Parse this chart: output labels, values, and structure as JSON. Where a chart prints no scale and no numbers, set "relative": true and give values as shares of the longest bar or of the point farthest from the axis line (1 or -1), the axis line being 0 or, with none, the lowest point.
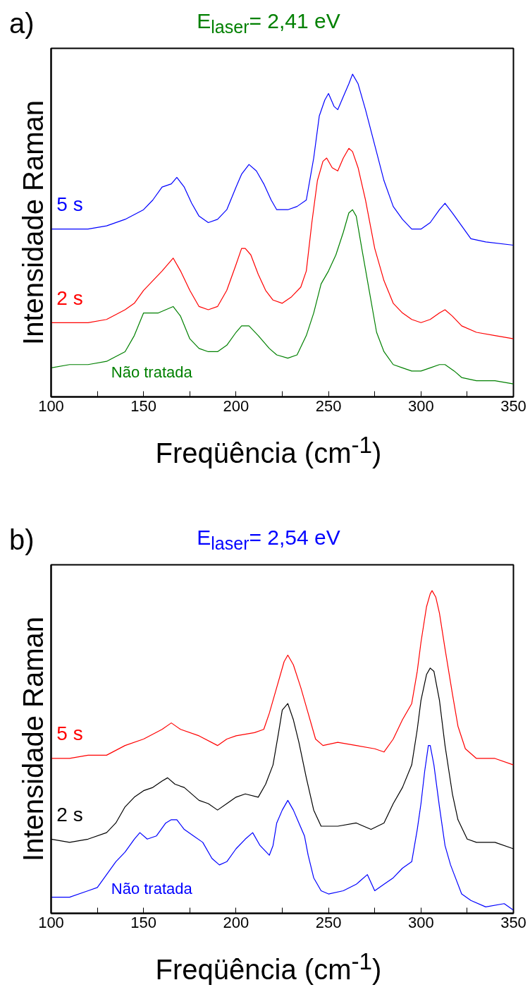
{
  "chart_data": [
    {
      "type": "line",
      "title": "E$_{laser}$= 2,41 eV",
      "xlabel": "Freqüência (cm$^{-1}$)",
      "ylabel": "Intensidade Raman",
      "relative": true,
      "xlim": [
        100,
        350
      ],
      "xticks": [
        100,
        {
          "value": 125,
          "label": null
        },
        150,
        {
          "value": 175,
          "label": null
        },
        200,
        {
          "value": 225,
          "label": null
        },
        250,
        {
          "value": 275,
          "label": null
        },
        300,
        {
          "value": 325,
          "label": null
        },
        350
      ],
      "tick_labels": "x",
      "grid": false,
      "annotations": [
        "a)"
      ],
      "series": [
        {
          "name": "5 s",
          "color": "#0000ff",
          "x": [
            100,
            120,
            130,
            140,
            150,
            155,
            160,
            165,
            168,
            172,
            176,
            180,
            185,
            190,
            195,
            200,
            203,
            207,
            211,
            215,
            219,
            222,
            228,
            233,
            238,
            242,
            245,
            248,
            250,
            253,
            255,
            258,
            261,
            263,
            266,
            270,
            275,
            280,
            285,
            290,
            295,
            300,
            305,
            310,
            313,
            317,
            322,
            327,
            335,
            350
          ],
          "values": [
            0.52,
            0.52,
            0.53,
            0.55,
            0.58,
            0.61,
            0.65,
            0.66,
            0.68,
            0.65,
            0.6,
            0.56,
            0.54,
            0.55,
            0.58,
            0.65,
            0.69,
            0.72,
            0.7,
            0.66,
            0.61,
            0.58,
            0.58,
            0.59,
            0.61,
            0.74,
            0.87,
            0.92,
            0.94,
            0.9,
            0.89,
            0.93,
            0.97,
            1.0,
            0.97,
            0.89,
            0.78,
            0.67,
            0.59,
            0.55,
            0.52,
            0.52,
            0.54,
            0.58,
            0.6,
            0.57,
            0.53,
            0.49,
            0.48,
            0.47
          ]
        },
        {
          "name": "2 s",
          "color": "#ff0000",
          "x": [
            100,
            120,
            130,
            140,
            145,
            150,
            155,
            160,
            166,
            170,
            175,
            180,
            185,
            190,
            195,
            200,
            203,
            205,
            208,
            212,
            216,
            220,
            225,
            230,
            235,
            238,
            241,
            244,
            247,
            249,
            252,
            255,
            258,
            261,
            263,
            266,
            270,
            275,
            280,
            285,
            290,
            295,
            300,
            305,
            310,
            313,
            317,
            322,
            330,
            340,
            350
          ],
          "values": [
            0.23,
            0.23,
            0.24,
            0.27,
            0.29,
            0.33,
            0.36,
            0.39,
            0.43,
            0.39,
            0.33,
            0.28,
            0.27,
            0.28,
            0.33,
            0.41,
            0.46,
            0.46,
            0.44,
            0.38,
            0.33,
            0.3,
            0.29,
            0.31,
            0.34,
            0.39,
            0.54,
            0.67,
            0.73,
            0.74,
            0.71,
            0.7,
            0.74,
            0.77,
            0.76,
            0.71,
            0.61,
            0.46,
            0.36,
            0.29,
            0.26,
            0.24,
            0.23,
            0.24,
            0.26,
            0.27,
            0.25,
            0.22,
            0.2,
            0.19,
            0.18
          ]
        },
        {
          "name": "Não tratada",
          "color": "#008000",
          "x": [
            100,
            110,
            120,
            130,
            140,
            145,
            150,
            154,
            158,
            162,
            166,
            170,
            175,
            180,
            185,
            190,
            195,
            200,
            203,
            207,
            212,
            218,
            222,
            228,
            233,
            238,
            242,
            246,
            250,
            254,
            258,
            261,
            263,
            265,
            268,
            272,
            276,
            280,
            285,
            290,
            295,
            300,
            305,
            310,
            313,
            318,
            322,
            330,
            340,
            350
          ],
          "values": [
            0.09,
            0.1,
            0.1,
            0.11,
            0.14,
            0.19,
            0.26,
            0.26,
            0.26,
            0.27,
            0.28,
            0.25,
            0.18,
            0.15,
            0.14,
            0.14,
            0.16,
            0.2,
            0.22,
            0.22,
            0.19,
            0.15,
            0.13,
            0.12,
            0.13,
            0.19,
            0.26,
            0.35,
            0.39,
            0.44,
            0.51,
            0.57,
            0.58,
            0.56,
            0.46,
            0.33,
            0.2,
            0.14,
            0.1,
            0.09,
            0.08,
            0.08,
            0.09,
            0.1,
            0.1,
            0.08,
            0.06,
            0.05,
            0.05,
            0.04
          ]
        }
      ]
    },
    {
      "type": "line",
      "title": "E$_{laser}$= 2,54 eV",
      "xlabel": "Freqüência (cm$^{-1}$)",
      "ylabel": "Intensidade Raman",
      "relative": true,
      "xlim": [
        100,
        350
      ],
      "xticks": [
        100,
        {
          "value": 125,
          "label": null
        },
        150,
        {
          "value": 175,
          "label": null
        },
        200,
        {
          "value": 225,
          "label": null
        },
        250,
        {
          "value": 275,
          "label": null
        },
        300,
        {
          "value": 325,
          "label": null
        },
        350
      ],
      "tick_labels": "x",
      "grid": false,
      "annotations": [
        "b)"
      ],
      "series": [
        {
          "name": "5 s",
          "color": "#ff0000",
          "x": [
            100,
            110,
            120,
            130,
            140,
            150,
            160,
            165,
            170,
            180,
            190,
            195,
            200,
            210,
            215,
            218,
            222,
            226,
            228,
            231,
            235,
            239,
            243,
            247,
            255,
            265,
            275,
            280,
            285,
            290,
            295,
            298,
            300,
            303,
            305,
            306,
            308,
            310,
            313,
            317,
            320,
            324,
            330,
            340,
            350
          ],
          "values": [
            0.48,
            0.48,
            0.49,
            0.49,
            0.52,
            0.54,
            0.57,
            0.59,
            0.57,
            0.55,
            0.52,
            0.54,
            0.55,
            0.56,
            0.57,
            0.62,
            0.7,
            0.78,
            0.8,
            0.77,
            0.7,
            0.62,
            0.54,
            0.52,
            0.53,
            0.52,
            0.51,
            0.5,
            0.54,
            0.6,
            0.65,
            0.75,
            0.84,
            0.95,
            0.99,
            1.0,
            0.98,
            0.93,
            0.82,
            0.68,
            0.58,
            0.51,
            0.48,
            0.48,
            0.46
          ]
        },
        {
          "name": "2 s",
          "color": "#000000",
          "x": [
            100,
            110,
            120,
            130,
            135,
            140,
            145,
            150,
            155,
            160,
            163,
            167,
            172,
            180,
            185,
            190,
            195,
            200,
            205,
            212,
            216,
            220,
            223,
            225,
            228,
            231,
            234,
            238,
            242,
            246,
            255,
            265,
            273,
            280,
            285,
            290,
            295,
            298,
            300,
            303,
            305,
            307,
            310,
            313,
            317,
            320,
            325,
            330,
            340,
            350
          ],
          "values": [
            0.23,
            0.22,
            0.23,
            0.25,
            0.28,
            0.33,
            0.36,
            0.38,
            0.39,
            0.41,
            0.42,
            0.4,
            0.39,
            0.35,
            0.34,
            0.32,
            0.34,
            0.36,
            0.37,
            0.36,
            0.4,
            0.46,
            0.56,
            0.63,
            0.65,
            0.6,
            0.53,
            0.42,
            0.32,
            0.27,
            0.27,
            0.28,
            0.26,
            0.28,
            0.34,
            0.39,
            0.46,
            0.57,
            0.66,
            0.74,
            0.76,
            0.75,
            0.66,
            0.52,
            0.37,
            0.29,
            0.23,
            0.22,
            0.22,
            0.2
          ]
        },
        {
          "name": "Não tratada",
          "color": "#0000ff",
          "x": [
            100,
            110,
            120,
            125,
            130,
            135,
            140,
            145,
            148,
            152,
            157,
            162,
            165,
            168,
            172,
            177,
            182,
            187,
            191,
            195,
            200,
            205,
            209,
            213,
            218,
            220,
            222,
            225,
            228,
            231,
            234,
            237,
            239,
            242,
            246,
            250,
            258,
            265,
            271,
            275,
            280,
            285,
            290,
            295,
            298,
            300,
            302,
            304,
            305,
            307,
            310,
            313,
            316,
            318,
            322,
            327,
            335,
            345,
            350
          ],
          "values": [
            0.05,
            0.05,
            0.07,
            0.08,
            0.12,
            0.16,
            0.19,
            0.23,
            0.25,
            0.23,
            0.24,
            0.28,
            0.29,
            0.29,
            0.26,
            0.24,
            0.22,
            0.17,
            0.15,
            0.16,
            0.2,
            0.23,
            0.25,
            0.21,
            0.18,
            0.21,
            0.28,
            0.32,
            0.35,
            0.32,
            0.28,
            0.24,
            0.18,
            0.11,
            0.07,
            0.06,
            0.07,
            0.09,
            0.12,
            0.07,
            0.09,
            0.11,
            0.14,
            0.16,
            0.26,
            0.34,
            0.44,
            0.52,
            0.52,
            0.46,
            0.33,
            0.21,
            0.15,
            0.12,
            0.06,
            0.04,
            0.02,
            0.03,
            0.01
          ]
        }
      ]
    }
  ]
}
